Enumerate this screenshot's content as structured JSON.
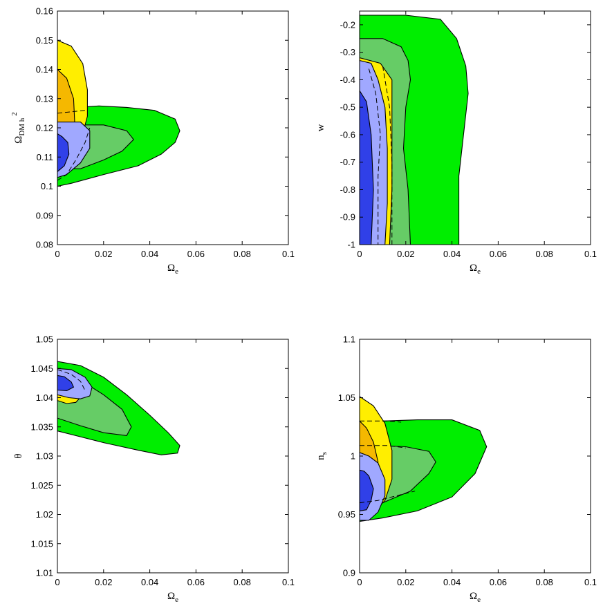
{
  "chart_data": [
    {
      "type": "contour",
      "xlabel": "Ω_e",
      "ylabel": "Ω_DM h^2",
      "xlim": [
        0,
        0.1
      ],
      "ylim": [
        0.08,
        0.16
      ],
      "xticks": [
        "0",
        "0.02",
        "0.04",
        "0.06",
        "0.08",
        "0.1"
      ],
      "yticks": [
        "0.08",
        "0.09",
        "0.1",
        "0.11",
        "0.12",
        "0.13",
        "0.14",
        "0.15",
        "0.16"
      ],
      "grid": false,
      "regions": [
        {
          "color": "#00ee00",
          "points": [
            [
              0,
              0.1
            ],
            [
              0.006,
              0.101
            ],
            [
              0.02,
              0.104
            ],
            [
              0.035,
              0.107
            ],
            [
              0.045,
              0.111
            ],
            [
              0.051,
              0.115
            ],
            [
              0.053,
              0.119
            ],
            [
              0.051,
              0.123
            ],
            [
              0.042,
              0.126
            ],
            [
              0.03,
              0.127
            ],
            [
              0.018,
              0.1275
            ],
            [
              0.008,
              0.127
            ],
            [
              0,
              0.126
            ]
          ]
        },
        {
          "color": "#66cc66",
          "points": [
            [
              0,
              0.106
            ],
            [
              0.01,
              0.106
            ],
            [
              0.02,
              0.109
            ],
            [
              0.028,
              0.112
            ],
            [
              0.033,
              0.116
            ],
            [
              0.03,
              0.119
            ],
            [
              0.02,
              0.121
            ],
            [
              0.008,
              0.121
            ],
            [
              0,
              0.121
            ]
          ]
        },
        {
          "color": "#ffee00",
          "points": [
            [
              0,
              0.15
            ],
            [
              0.006,
              0.148
            ],
            [
              0.011,
              0.142
            ],
            [
              0.013,
              0.133
            ],
            [
              0.013,
              0.124
            ],
            [
              0.011,
              0.118
            ],
            [
              0.008,
              0.113
            ],
            [
              0.004,
              0.11
            ],
            [
              0,
              0.108
            ]
          ]
        },
        {
          "color": "#f5b800",
          "points": [
            [
              0,
              0.14
            ],
            [
              0.004,
              0.137
            ],
            [
              0.007,
              0.13
            ],
            [
              0.0075,
              0.122
            ],
            [
              0.005,
              0.117
            ],
            [
              0,
              0.114
            ]
          ]
        },
        {
          "color": "#a0a8ff",
          "points": [
            [
              0,
              0.103
            ],
            [
              0.004,
              0.104
            ],
            [
              0.01,
              0.108
            ],
            [
              0.014,
              0.113
            ],
            [
              0.014,
              0.119
            ],
            [
              0.01,
              0.122
            ],
            [
              0.004,
              0.122
            ],
            [
              0,
              0.122
            ]
          ]
        },
        {
          "color": "#3040e8",
          "points": [
            [
              0,
              0.105
            ],
            [
              0.003,
              0.107
            ],
            [
              0.005,
              0.111
            ],
            [
              0.0045,
              0.115
            ],
            [
              0.002,
              0.117
            ],
            [
              0,
              0.118
            ]
          ]
        }
      ],
      "dashed_lines": [
        [
          [
            0,
            0.125
          ],
          [
            0.006,
            0.1255
          ],
          [
            0.012,
            0.126
          ]
        ],
        [
          [
            0,
            0.102
          ],
          [
            0.004,
            0.104
          ],
          [
            0.008,
            0.109
          ],
          [
            0.012,
            0.115
          ],
          [
            0.014,
            0.12
          ]
        ]
      ]
    },
    {
      "type": "contour",
      "xlabel": "Ω_e",
      "ylabel": "w",
      "xlim": [
        0,
        0.1
      ],
      "ylim": [
        -1,
        -0.15
      ],
      "xticks": [
        "0",
        "0.02",
        "0.04",
        "0.06",
        "0.08",
        "0.1"
      ],
      "yticks": [
        "-1",
        "-0.9",
        "-0.8",
        "-0.7",
        "-0.6",
        "-0.5",
        "-0.4",
        "-0.3",
        "-0.2"
      ],
      "grid": false,
      "regions": [
        {
          "color": "#00ee00",
          "points": [
            [
              0,
              -1
            ],
            [
              0,
              -0.165
            ],
            [
              0.02,
              -0.165
            ],
            [
              0.035,
              -0.18
            ],
            [
              0.042,
              -0.25
            ],
            [
              0.046,
              -0.35
            ],
            [
              0.047,
              -0.45
            ],
            [
              0.045,
              -0.6
            ],
            [
              0.043,
              -0.75
            ],
            [
              0.043,
              -0.9
            ],
            [
              0.043,
              -1
            ]
          ]
        },
        {
          "color": "#66cc66",
          "points": [
            [
              0,
              -1
            ],
            [
              0,
              -0.25
            ],
            [
              0.01,
              -0.25
            ],
            [
              0.018,
              -0.28
            ],
            [
              0.021,
              -0.33
            ],
            [
              0.022,
              -0.4
            ],
            [
              0.02,
              -0.5
            ],
            [
              0.019,
              -0.65
            ],
            [
              0.021,
              -0.8
            ],
            [
              0.022,
              -1
            ]
          ]
        },
        {
          "color": "#ffee00",
          "points": [
            [
              0,
              -1
            ],
            [
              0,
              -0.32
            ],
            [
              0.009,
              -0.34
            ],
            [
              0.014,
              -0.4
            ],
            [
              0.014,
              -0.6
            ],
            [
              0.014,
              -0.8
            ],
            [
              0.013,
              -1
            ]
          ]
        },
        {
          "color": "#f5b800",
          "points": [
            [
              0,
              -1
            ],
            [
              0,
              -0.44
            ],
            [
              0.004,
              -0.5
            ],
            [
              0.006,
              -0.7
            ],
            [
              0.006,
              -1
            ]
          ]
        },
        {
          "color": "#a0a8ff",
          "points": [
            [
              0,
              -1
            ],
            [
              0,
              -0.33
            ],
            [
              0.005,
              -0.34
            ],
            [
              0.008,
              -0.4
            ],
            [
              0.011,
              -0.5
            ],
            [
              0.012,
              -0.65
            ],
            [
              0.012,
              -0.85
            ],
            [
              0.011,
              -1
            ]
          ]
        },
        {
          "color": "#3040e8",
          "points": [
            [
              0,
              -1
            ],
            [
              0,
              -0.44
            ],
            [
              0.003,
              -0.48
            ],
            [
              0.005,
              -0.6
            ],
            [
              0.006,
              -0.8
            ],
            [
              0.005,
              -1
            ]
          ]
        }
      ],
      "dashed_lines": [
        [
          [
            0.004,
            -0.36
          ],
          [
            0.007,
            -0.45
          ],
          [
            0.009,
            -0.6
          ],
          [
            0.008,
            -0.75
          ],
          [
            0.008,
            -0.9
          ],
          [
            0.008,
            -1
          ]
        ],
        [
          [
            0.01,
            -0.35
          ],
          [
            0.013,
            -0.5
          ],
          [
            0.014,
            -0.7
          ],
          [
            0.014,
            -1
          ]
        ]
      ]
    },
    {
      "type": "contour",
      "xlabel": "Ω_e",
      "ylabel": "θ",
      "xlim": [
        0,
        0.1
      ],
      "ylim": [
        1.01,
        1.05
      ],
      "xticks": [
        "0",
        "0.02",
        "0.04",
        "0.06",
        "0.08",
        "0.1"
      ],
      "yticks": [
        "1.01",
        "1.015",
        "1.02",
        "1.025",
        "1.03",
        "1.035",
        "1.04",
        "1.045",
        "1.05"
      ],
      "grid": false,
      "regions": [
        {
          "color": "#00ee00",
          "points": [
            [
              0,
              1.0462
            ],
            [
              0.01,
              1.0455
            ],
            [
              0.02,
              1.0435
            ],
            [
              0.03,
              1.0405
            ],
            [
              0.04,
              1.037
            ],
            [
              0.048,
              1.034
            ],
            [
              0.053,
              1.0318
            ],
            [
              0.052,
              1.0305
            ],
            [
              0.045,
              1.0302
            ],
            [
              0.035,
              1.031
            ],
            [
              0.02,
              1.0323
            ],
            [
              0.01,
              1.0333
            ],
            [
              0,
              1.0343
            ]
          ]
        },
        {
          "color": "#66cc66",
          "points": [
            [
              0,
              1.0445
            ],
            [
              0.01,
              1.043
            ],
            [
              0.02,
              1.0405
            ],
            [
              0.028,
              1.038
            ],
            [
              0.032,
              1.035
            ],
            [
              0.03,
              1.0335
            ],
            [
              0.02,
              1.034
            ],
            [
              0.01,
              1.0352
            ],
            [
              0,
              1.0365
            ]
          ]
        },
        {
          "color": "#ffee00",
          "points": [
            [
              0,
              1.0445
            ],
            [
              0.006,
              1.044
            ],
            [
              0.01,
              1.0425
            ],
            [
              0.011,
              1.0405
            ],
            [
              0.008,
              1.0392
            ],
            [
              0.004,
              1.039
            ],
            [
              0,
              1.0395
            ]
          ]
        },
        {
          "color": "#f5b800",
          "points": [
            [
              0,
              1.044
            ],
            [
              0.004,
              1.0432
            ],
            [
              0.006,
              1.0418
            ],
            [
              0.004,
              1.0408
            ],
            [
              0,
              1.0405
            ]
          ]
        },
        {
          "color": "#a0a8ff",
          "points": [
            [
              0,
              1.045
            ],
            [
              0.006,
              1.0448
            ],
            [
              0.012,
              1.0435
            ],
            [
              0.015,
              1.0418
            ],
            [
              0.014,
              1.0403
            ],
            [
              0.01,
              1.0398
            ],
            [
              0.005,
              1.04
            ],
            [
              0,
              1.0405
            ]
          ]
        },
        {
          "color": "#3040e8",
          "points": [
            [
              0,
              1.0438
            ],
            [
              0.003,
              1.0436
            ],
            [
              0.006,
              1.0427
            ],
            [
              0.007,
              1.0418
            ],
            [
              0.004,
              1.0412
            ],
            [
              0,
              1.0413
            ]
          ]
        }
      ],
      "dashed_lines": [
        [
          [
            0,
            1.0448
          ],
          [
            0.006,
            1.044
          ],
          [
            0.01,
            1.0428
          ],
          [
            0.012,
            1.0412
          ]
        ]
      ]
    },
    {
      "type": "contour",
      "xlabel": "Ω_e",
      "ylabel": "n_s",
      "xlim": [
        0,
        0.1
      ],
      "ylim": [
        0.9,
        1.1
      ],
      "xticks": [
        "0",
        "0.02",
        "0.04",
        "0.06",
        "0.08",
        "0.1"
      ],
      "yticks": [
        "0.9",
        "0.95",
        "1",
        "1.05",
        "1.1"
      ],
      "grid": false,
      "regions": [
        {
          "color": "#00ee00",
          "points": [
            [
              0,
              0.944
            ],
            [
              0.01,
              0.947
            ],
            [
              0.025,
              0.953
            ],
            [
              0.04,
              0.965
            ],
            [
              0.05,
              0.985
            ],
            [
              0.055,
              1.008
            ],
            [
              0.052,
              1.022
            ],
            [
              0.04,
              1.031
            ],
            [
              0.025,
              1.031
            ],
            [
              0.01,
              1.03
            ],
            [
              0,
              1.03
            ]
          ]
        },
        {
          "color": "#66cc66",
          "points": [
            [
              0,
              0.955
            ],
            [
              0.01,
              0.96
            ],
            [
              0.022,
              0.97
            ],
            [
              0.03,
              0.985
            ],
            [
              0.033,
              0.995
            ],
            [
              0.03,
              1.004
            ],
            [
              0.02,
              1.008
            ],
            [
              0.008,
              1.009
            ],
            [
              0,
              1.009
            ]
          ]
        },
        {
          "color": "#ffee00",
          "points": [
            [
              0,
              0.948
            ],
            [
              0.006,
              0.952
            ],
            [
              0.011,
              0.962
            ],
            [
              0.014,
              0.98
            ],
            [
              0.014,
              1.005
            ],
            [
              0.011,
              1.028
            ],
            [
              0.006,
              1.043
            ],
            [
              0,
              1.051
            ]
          ]
        },
        {
          "color": "#f5b800",
          "points": [
            [
              0,
              0.96
            ],
            [
              0.004,
              0.965
            ],
            [
              0.007,
              0.978
            ],
            [
              0.008,
              0.995
            ],
            [
              0.006,
              1.012
            ],
            [
              0.003,
              1.024
            ],
            [
              0,
              1.03
            ]
          ]
        },
        {
          "color": "#a0a8ff",
          "points": [
            [
              0,
              0.945
            ],
            [
              0.004,
              0.945
            ],
            [
              0.008,
              0.952
            ],
            [
              0.011,
              0.966
            ],
            [
              0.011,
              0.98
            ],
            [
              0.008,
              0.994
            ],
            [
              0.004,
              1.0
            ],
            [
              0,
              1.003
            ]
          ]
        },
        {
          "color": "#3040e8",
          "points": [
            [
              0,
              0.953
            ],
            [
              0.003,
              0.954
            ],
            [
              0.005,
              0.962
            ],
            [
              0.006,
              0.972
            ],
            [
              0.004,
              0.983
            ],
            [
              0.002,
              0.987
            ],
            [
              0,
              0.988
            ]
          ]
        }
      ],
      "dashed_lines": [
        [
          [
            0,
            1.03
          ],
          [
            0.006,
            1.03
          ],
          [
            0.012,
            1.03
          ],
          [
            0.018,
            1.029
          ]
        ],
        [
          [
            0,
            1.009
          ],
          [
            0.006,
            1.009
          ],
          [
            0.012,
            1.009
          ],
          [
            0.02,
            1.007
          ]
        ],
        [
          [
            0,
            0.96
          ],
          [
            0.008,
            0.962
          ],
          [
            0.016,
            0.966
          ],
          [
            0.024,
            0.97
          ]
        ]
      ]
    }
  ]
}
